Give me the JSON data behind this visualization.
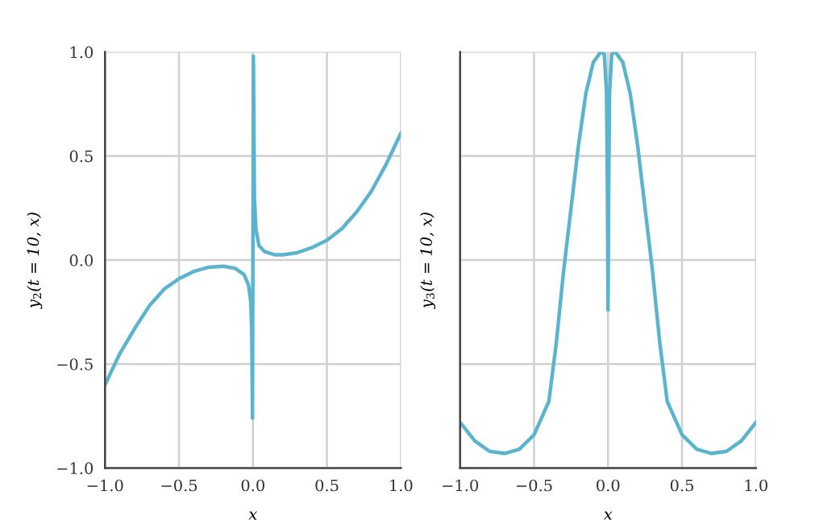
{
  "chart_data": [
    {
      "type": "line",
      "xlabel": "x",
      "ylabel": "y$_{2}$(t = 10, x)",
      "xlim": [
        -1,
        1
      ],
      "ylim": [
        -1,
        1
      ],
      "xticks": [
        {
          "value": -1,
          "label": "−1.0"
        },
        {
          "value": -0.5,
          "label": "−0.5"
        },
        {
          "value": 0,
          "label": "0.0"
        },
        {
          "value": 0.5,
          "label": "0.5"
        },
        {
          "value": 1,
          "label": "1.0"
        }
      ],
      "yticks": [
        {
          "value": -1,
          "label": "−1.0"
        },
        {
          "value": -0.5,
          "label": "−0.5"
        },
        {
          "value": 0,
          "label": "0.0"
        },
        {
          "value": 0.5,
          "label": "0.5"
        },
        {
          "value": 1,
          "label": "1.0"
        }
      ],
      "grid": true,
      "marker": "none",
      "line_style": "solid",
      "series": [
        {
          "color": "#5ab4cd",
          "x": [
            -1,
            -0.9,
            -0.8,
            -0.7,
            -0.6,
            -0.5,
            -0.4,
            -0.3,
            -0.2,
            -0.12,
            -0.06,
            -0.03,
            -0.015,
            -0.008,
            -0.003,
            0.003,
            0.01,
            0.02,
            0.04,
            0.08,
            0.15,
            0.2,
            0.3,
            0.4,
            0.5,
            0.6,
            0.7,
            0.8,
            0.9,
            1.0
          ],
          "values": [
            -0.6,
            -0.45,
            -0.33,
            -0.22,
            -0.14,
            -0.09,
            -0.055,
            -0.035,
            -0.03,
            -0.04,
            -0.07,
            -0.12,
            -0.2,
            -0.35,
            -0.76,
            0.98,
            0.3,
            0.15,
            0.07,
            0.04,
            0.025,
            0.025,
            0.035,
            0.06,
            0.095,
            0.15,
            0.23,
            0.33,
            0.46,
            0.61
          ]
        }
      ]
    },
    {
      "type": "line",
      "xlabel": "x",
      "ylabel": "y$_{3}$(t = 10, x)",
      "xlim": [
        -1,
        1
      ],
      "ylim": [
        -1,
        1
      ],
      "xticks": [
        {
          "value": -1,
          "label": "−1.0"
        },
        {
          "value": -0.5,
          "label": "−0.5"
        },
        {
          "value": 0,
          "label": "0.0"
        },
        {
          "value": 0.5,
          "label": "0.5"
        },
        {
          "value": 1,
          "label": "1.0"
        }
      ],
      "yticks": [
        {
          "value": -1,
          "label": null
        },
        {
          "value": -0.5,
          "label": null
        },
        {
          "value": 0,
          "label": null
        },
        {
          "value": 0.5,
          "label": null
        },
        {
          "value": 1,
          "label": null
        }
      ],
      "tick_labels": "x",
      "grid": true,
      "marker": "none",
      "line_style": "solid",
      "series": [
        {
          "color": "#5ab4cd",
          "x": [
            -1,
            -0.9,
            -0.8,
            -0.7,
            -0.6,
            -0.5,
            -0.4,
            -0.35,
            -0.3,
            -0.25,
            -0.2,
            -0.15,
            -0.1,
            -0.05,
            -0.025,
            -0.01,
            -0.004,
            0,
            0.004,
            0.01,
            0.025,
            0.05,
            0.1,
            0.15,
            0.2,
            0.25,
            0.3,
            0.35,
            0.4,
            0.5,
            0.6,
            0.7,
            0.8,
            0.9,
            1.0
          ],
          "values": [
            -0.78,
            -0.87,
            -0.92,
            -0.93,
            -0.91,
            -0.84,
            -0.68,
            -0.4,
            -0.05,
            0.25,
            0.55,
            0.8,
            0.95,
            1.0,
            0.99,
            0.8,
            0.3,
            -0.24,
            0.3,
            0.8,
            0.99,
            1.0,
            0.95,
            0.8,
            0.55,
            0.25,
            -0.05,
            -0.4,
            -0.68,
            -0.84,
            -0.91,
            -0.93,
            -0.92,
            -0.87,
            -0.78
          ]
        }
      ]
    }
  ]
}
